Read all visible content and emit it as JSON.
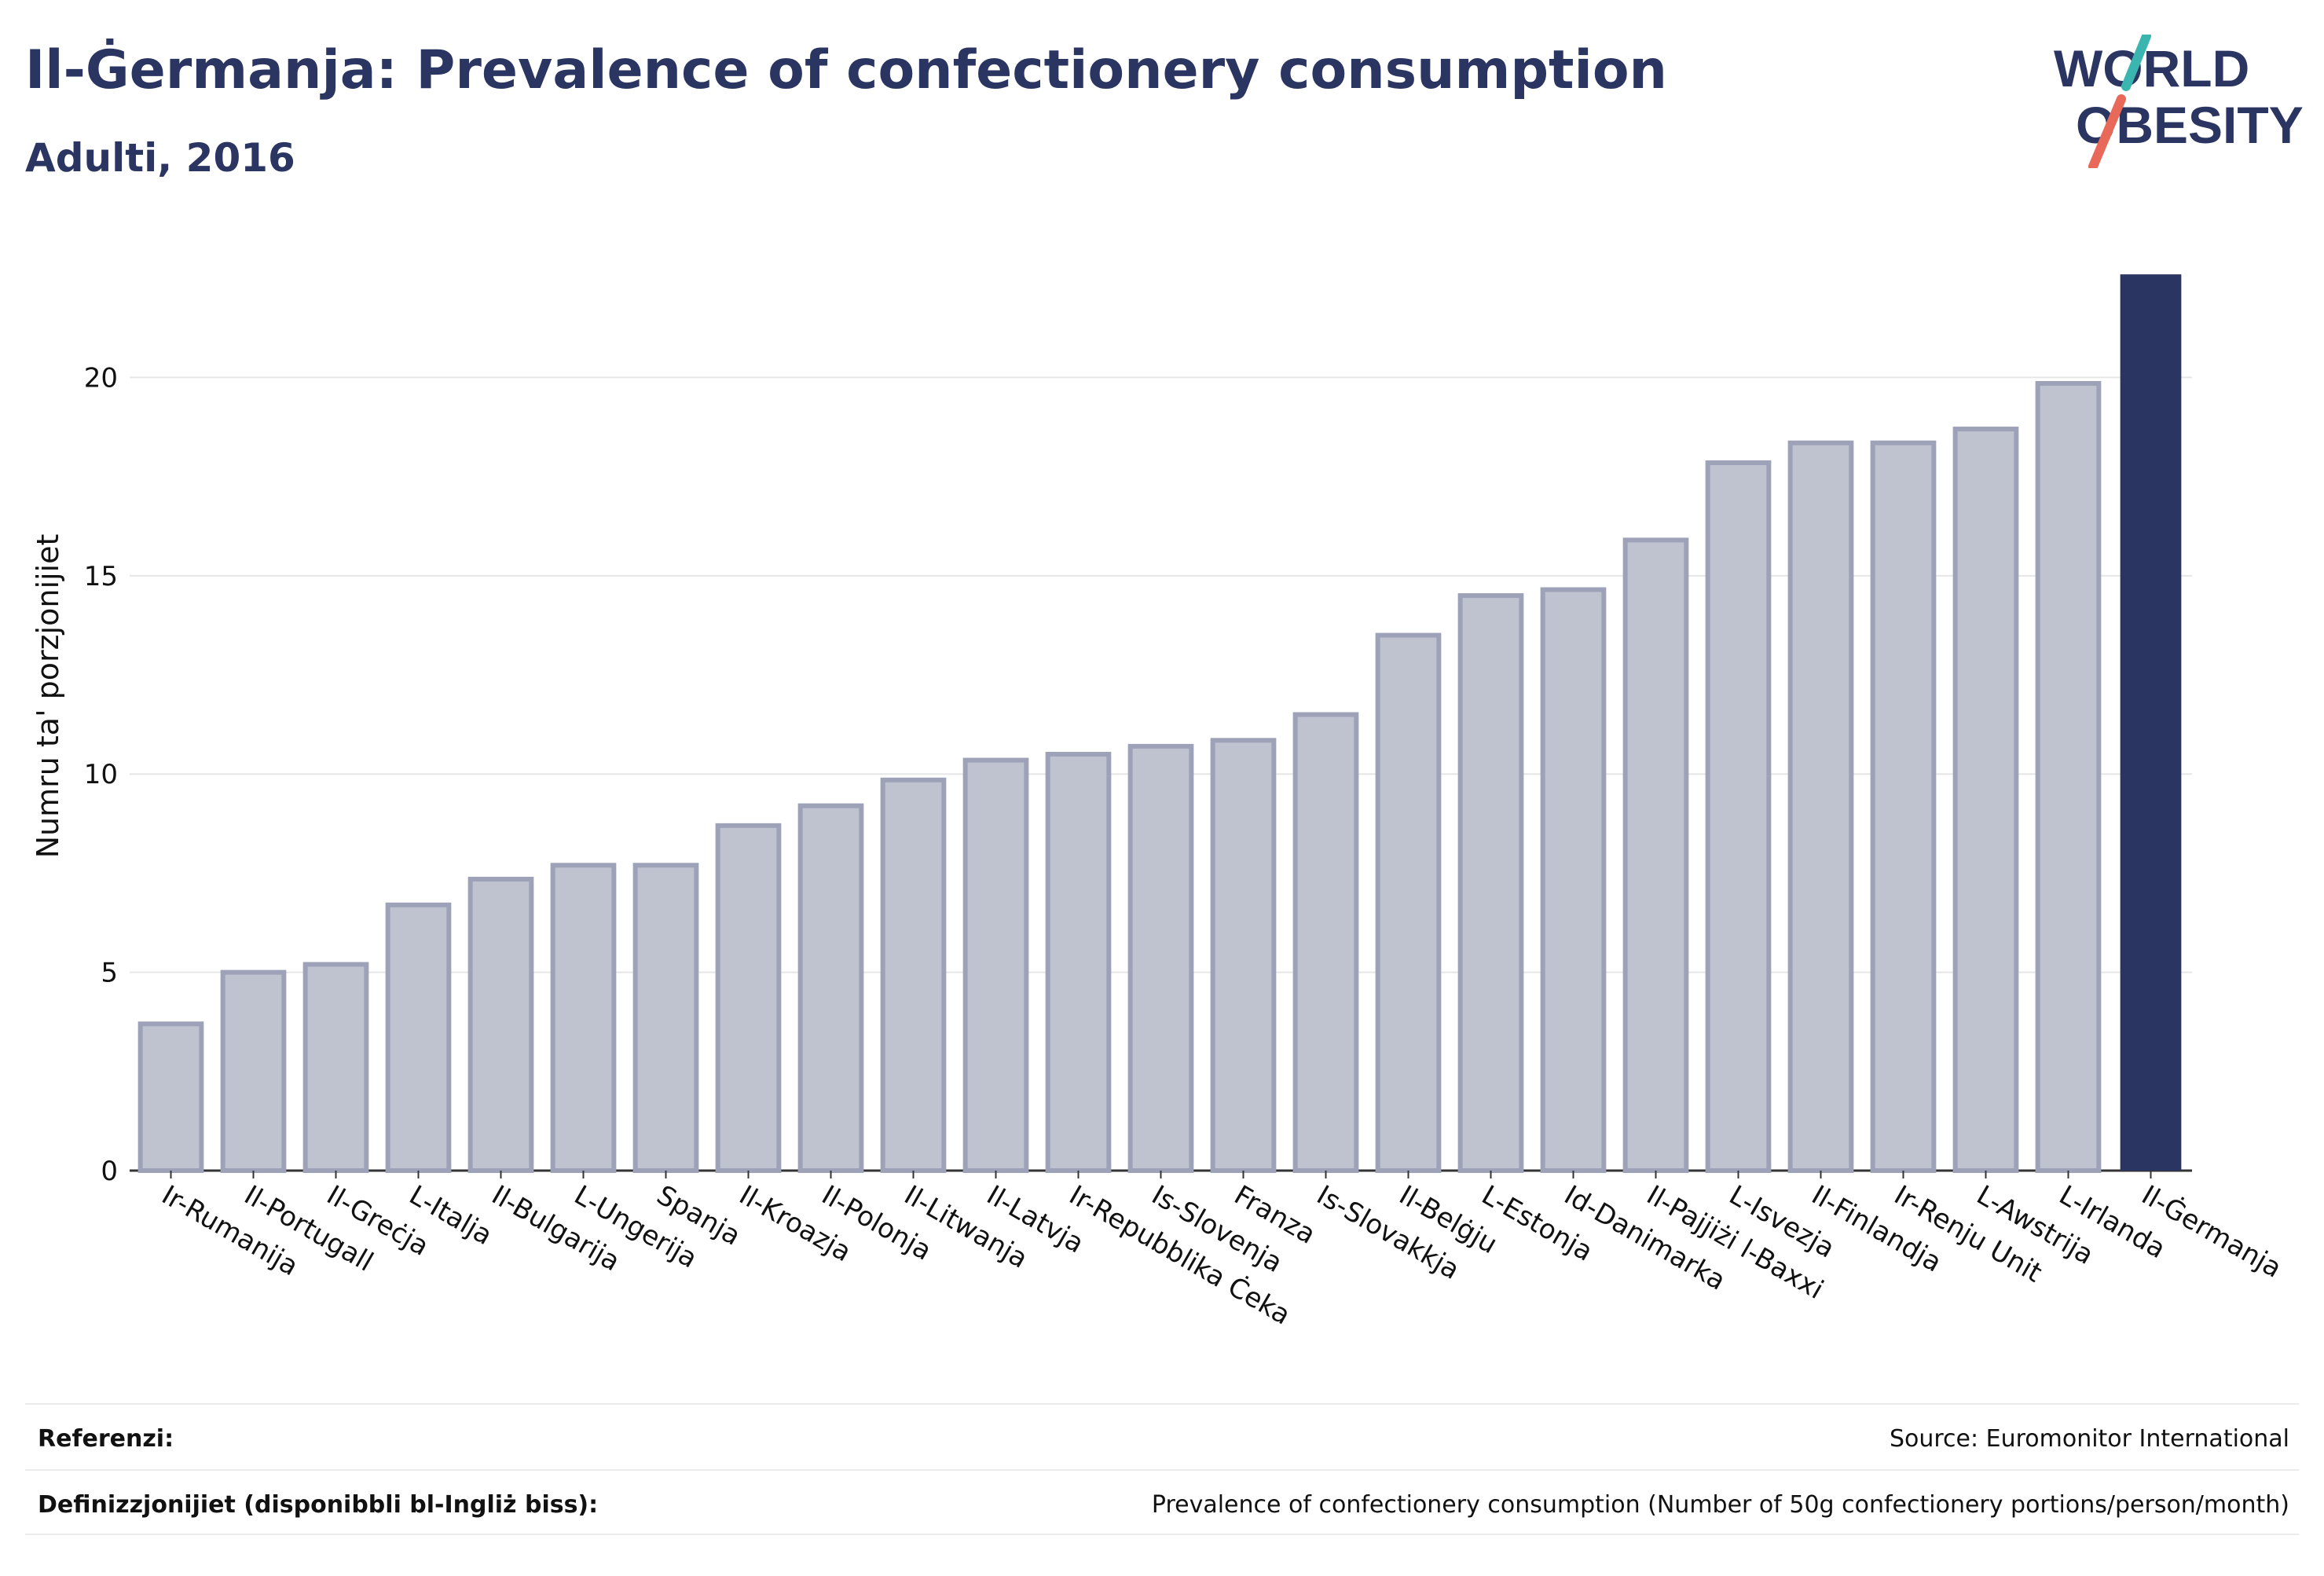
{
  "header": {
    "title": "Il-Ġermanja: Prevalence of confectionery consumption",
    "subtitle": "Adulti, 2016"
  },
  "logo": {
    "line1": "WORLD",
    "line2": "OBESITY",
    "accent_teal": "#3ab5b0",
    "accent_coral": "#e8695a"
  },
  "colors": {
    "bar": "#bfc2cf",
    "bar_border": "#9da2b8",
    "highlight": "#2b3561",
    "grid": "#e6e6e6",
    "text": "#111111"
  },
  "chart_data": {
    "type": "bar",
    "ylabel": "Numru ta' porzjonijiet",
    "ylim": [
      0,
      23
    ],
    "yticks": [
      0,
      5,
      10,
      15,
      20
    ],
    "grid": true,
    "highlight": "Il-Ġermanja",
    "categories": [
      "Ir-Rumanija",
      "Il-Portugall",
      "Il-Greċja",
      "L-Italja",
      "Il-Bulgarija",
      "L-Ungerija",
      "Spanja",
      "Il-Kroazja",
      "Il-Polonja",
      "Il-Litwanja",
      "Il-Latvja",
      "Ir-Repubblika Ċeka",
      "Is-Slovenja",
      "Franza",
      "Is-Slovakkja",
      "Il-Belġju",
      "L-Estonja",
      "Id-Danimarka",
      "Il-Pajjiżi l-Baxxi",
      "L-Isvezja",
      "Il-Finlandja",
      "Ir-Renju Unit",
      "L-Awstrija",
      "L-Irlanda",
      "Il-Ġermanja"
    ],
    "values": [
      3.7,
      5.0,
      5.2,
      6.7,
      7.35,
      7.7,
      7.7,
      8.7,
      9.2,
      9.85,
      10.35,
      10.5,
      10.7,
      10.85,
      11.5,
      13.5,
      14.5,
      14.65,
      15.9,
      17.85,
      18.35,
      18.35,
      18.7,
      19.85,
      22.6
    ]
  },
  "footer": {
    "references_label": "Referenzi:",
    "references_value": "Source: Euromonitor International",
    "definitions_label": "Definizzjonijiet (disponibbli bl-Ingliż biss):",
    "definitions_value": "Prevalence of confectionery consumption (Number of 50g confectionery portions/person/month)"
  }
}
